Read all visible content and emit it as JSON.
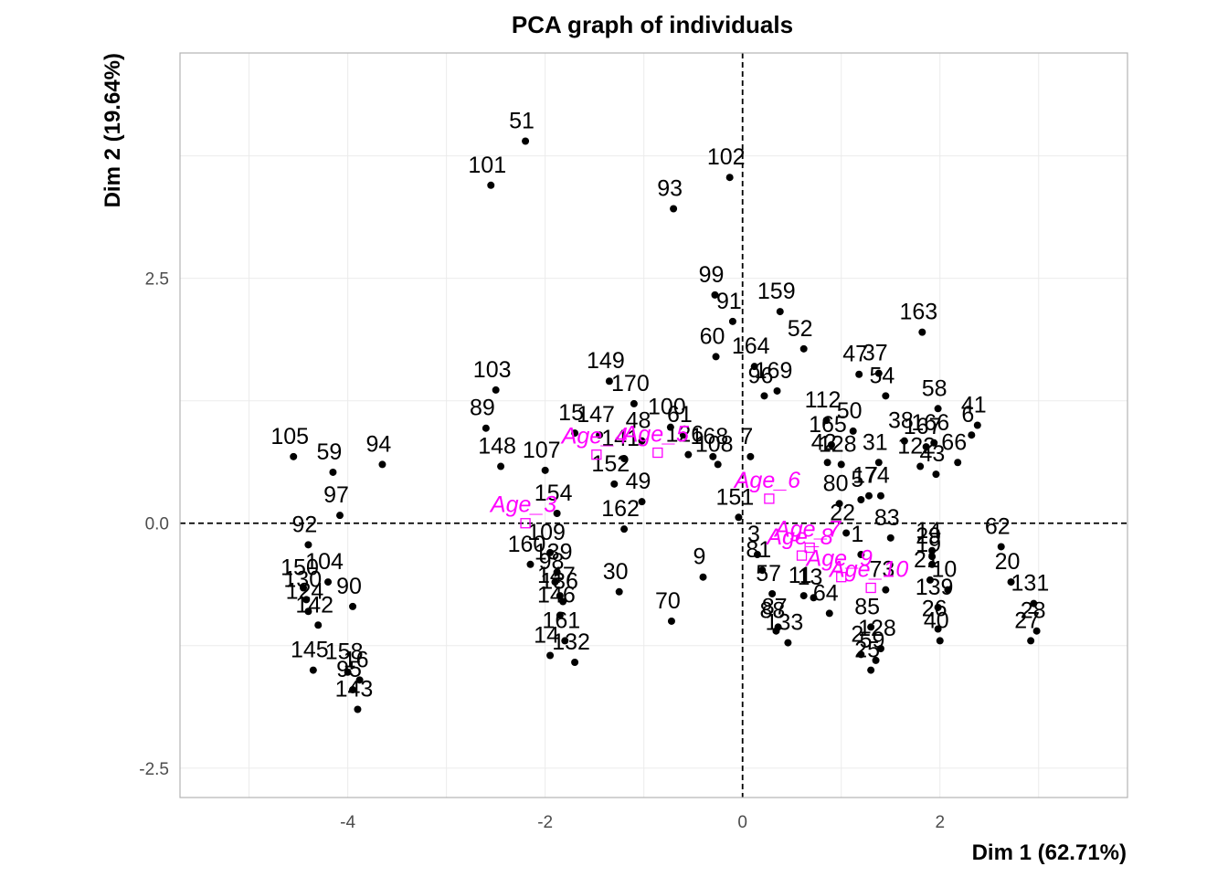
{
  "chart_data": {
    "type": "scatter",
    "title": "PCA graph of individuals",
    "xlabel": "Dim 1 (62.71%)",
    "ylabel": "Dim 2 (19.64%)",
    "xlim": [
      -5.7,
      3.9
    ],
    "ylim": [
      -2.8,
      4.8
    ],
    "x_ticks": [
      -4,
      -2,
      0,
      2
    ],
    "x_tick_labels": [
      "-4",
      "-2",
      "0",
      "2"
    ],
    "y_ticks": [
      -2.5,
      0,
      2.5
    ],
    "y_tick_labels": [
      "-2.5",
      "0.0",
      "2.5"
    ],
    "grid": true,
    "reference_lines": [
      0,
      0
    ],
    "point_color": "#000000",
    "supplementary_color": "#ff00ff",
    "individuals": [
      {
        "label": "51",
        "x": -2.2,
        "y": 3.9
      },
      {
        "label": "101",
        "x": -2.55,
        "y": 3.45
      },
      {
        "label": "102",
        "x": -0.13,
        "y": 3.53
      },
      {
        "label": "93",
        "x": -0.7,
        "y": 3.21
      },
      {
        "label": "99",
        "x": -0.28,
        "y": 2.33
      },
      {
        "label": "91",
        "x": -0.1,
        "y": 2.06
      },
      {
        "label": "60",
        "x": -0.27,
        "y": 1.7
      },
      {
        "label": "159",
        "x": 0.38,
        "y": 2.16
      },
      {
        "label": "52",
        "x": 0.62,
        "y": 1.78
      },
      {
        "label": "163",
        "x": 1.82,
        "y": 1.95
      },
      {
        "label": "164",
        "x": 0.12,
        "y": 1.6
      },
      {
        "label": "47",
        "x": 1.18,
        "y": 1.52
      },
      {
        "label": "37",
        "x": 1.38,
        "y": 1.53
      },
      {
        "label": "54",
        "x": 1.45,
        "y": 1.3
      },
      {
        "label": "169",
        "x": 0.35,
        "y": 1.35
      },
      {
        "label": "96",
        "x": 0.22,
        "y": 1.3
      },
      {
        "label": "58",
        "x": 1.98,
        "y": 1.17
      },
      {
        "label": "41",
        "x": 2.38,
        "y": 1.0
      },
      {
        "label": "6",
        "x": 2.32,
        "y": 0.9
      },
      {
        "label": "112",
        "x": 0.85,
        "y": 1.05
      },
      {
        "label": "50",
        "x": 1.12,
        "y": 0.94
      },
      {
        "label": "166",
        "x": 1.94,
        "y": 0.82
      },
      {
        "label": "38",
        "x": 1.64,
        "y": 0.84
      },
      {
        "label": "167",
        "x": 1.86,
        "y": 0.78
      },
      {
        "label": "66",
        "x": 2.18,
        "y": 0.62
      },
      {
        "label": "165",
        "x": 0.9,
        "y": 0.8
      },
      {
        "label": "31",
        "x": 1.38,
        "y": 0.62
      },
      {
        "label": "122",
        "x": 1.8,
        "y": 0.58
      },
      {
        "label": "43",
        "x": 1.96,
        "y": 0.5
      },
      {
        "label": "128",
        "x": 1.0,
        "y": 0.6
      },
      {
        "label": "42",
        "x": 0.86,
        "y": 0.62
      },
      {
        "label": "17",
        "x": 1.28,
        "y": 0.28
      },
      {
        "label": "74",
        "x": 1.4,
        "y": 0.28
      },
      {
        "label": "105",
        "x": -4.55,
        "y": 0.68
      },
      {
        "label": "59",
        "x": -4.15,
        "y": 0.52
      },
      {
        "label": "94",
        "x": -3.65,
        "y": 0.6
      },
      {
        "label": "97",
        "x": -4.08,
        "y": 0.08
      },
      {
        "label": "103",
        "x": -2.5,
        "y": 1.36
      },
      {
        "label": "89",
        "x": -2.6,
        "y": 0.97
      },
      {
        "label": "148",
        "x": -2.45,
        "y": 0.58
      },
      {
        "label": "107",
        "x": -2.0,
        "y": 0.54
      },
      {
        "label": "149",
        "x": -1.35,
        "y": 1.45
      },
      {
        "label": "170",
        "x": -1.1,
        "y": 1.22
      },
      {
        "label": "15",
        "x": -1.7,
        "y": 0.92
      },
      {
        "label": "147",
        "x": -1.45,
        "y": 0.9
      },
      {
        "label": "48",
        "x": -1.02,
        "y": 0.84
      },
      {
        "label": "100",
        "x": -0.73,
        "y": 0.98
      },
      {
        "label": "61",
        "x": -0.6,
        "y": 0.9
      },
      {
        "label": "168",
        "x": -0.3,
        "y": 0.68
      },
      {
        "label": "7",
        "x": 0.08,
        "y": 0.68
      },
      {
        "label": "126",
        "x": -0.55,
        "y": 0.7
      },
      {
        "label": "141",
        "x": -1.2,
        "y": 0.66
      },
      {
        "label": "108",
        "x": -0.25,
        "y": 0.6
      },
      {
        "label": "152",
        "x": -1.3,
        "y": 0.4
      },
      {
        "label": "49",
        "x": -1.02,
        "y": 0.22
      },
      {
        "label": "151",
        "x": -0.04,
        "y": 0.06
      },
      {
        "label": "154",
        "x": -1.88,
        "y": 0.1
      },
      {
        "label": "162",
        "x": -1.2,
        "y": -0.06
      },
      {
        "label": "109",
        "x": -1.95,
        "y": -0.3
      },
      {
        "label": "160",
        "x": -2.15,
        "y": -0.42
      },
      {
        "label": "139",
        "x": -1.88,
        "y": -0.5
      },
      {
        "label": "98",
        "x": -1.9,
        "y": -0.6
      },
      {
        "label": "147",
        "x": -1.85,
        "y": -0.74
      },
      {
        "label": "136",
        "x": -1.82,
        "y": -0.8
      },
      {
        "label": "146",
        "x": -1.85,
        "y": -0.94
      },
      {
        "label": "161",
        "x": -1.8,
        "y": -1.2
      },
      {
        "label": "14",
        "x": -1.95,
        "y": -1.35
      },
      {
        "label": "132",
        "x": -1.7,
        "y": -1.42
      },
      {
        "label": "30",
        "x": -1.25,
        "y": -0.7
      },
      {
        "label": "70",
        "x": -0.72,
        "y": -1.0
      },
      {
        "label": "9",
        "x": -0.4,
        "y": -0.55
      },
      {
        "label": "92",
        "x": -4.4,
        "y": -0.22
      },
      {
        "label": "104",
        "x": -4.2,
        "y": -0.6
      },
      {
        "label": "150",
        "x": -4.45,
        "y": -0.66
      },
      {
        "label": "130",
        "x": -4.42,
        "y": -0.78
      },
      {
        "label": "124",
        "x": -4.4,
        "y": -0.9
      },
      {
        "label": "90",
        "x": -3.95,
        "y": -0.85
      },
      {
        "label": "142",
        "x": -4.3,
        "y": -1.04
      },
      {
        "label": "145",
        "x": -4.35,
        "y": -1.5
      },
      {
        "label": "158",
        "x": -4.0,
        "y": -1.52
      },
      {
        "label": "16",
        "x": -3.88,
        "y": -1.6
      },
      {
        "label": "95",
        "x": -3.95,
        "y": -1.7
      },
      {
        "label": "143",
        "x": -3.9,
        "y": -1.9
      },
      {
        "label": "3",
        "x": 0.15,
        "y": -0.32
      },
      {
        "label": "81",
        "x": 0.2,
        "y": -0.48
      },
      {
        "label": "57",
        "x": 0.3,
        "y": -0.72
      },
      {
        "label": "11",
        "x": 0.62,
        "y": -0.74
      },
      {
        "label": "13",
        "x": 0.72,
        "y": -0.76
      },
      {
        "label": "64",
        "x": 0.88,
        "y": -0.92
      },
      {
        "label": "87",
        "x": 0.36,
        "y": -1.06
      },
      {
        "label": "88",
        "x": 0.34,
        "y": -1.1
      },
      {
        "label": "133",
        "x": 0.46,
        "y": -1.22
      },
      {
        "label": "22",
        "x": 1.05,
        "y": -0.1
      },
      {
        "label": "83",
        "x": 1.5,
        "y": -0.15
      },
      {
        "label": "80",
        "x": 0.98,
        "y": 0.2
      },
      {
        "label": "5",
        "x": 1.2,
        "y": 0.24
      },
      {
        "label": "1",
        "x": 1.2,
        "y": -0.32
      },
      {
        "label": "14",
        "x": 1.92,
        "y": -0.28
      },
      {
        "label": "29",
        "x": 1.92,
        "y": -0.34
      },
      {
        "label": "19",
        "x": 1.92,
        "y": -0.42
      },
      {
        "label": "21",
        "x": 1.9,
        "y": -0.58
      },
      {
        "label": "10",
        "x": 2.08,
        "y": -0.68
      },
      {
        "label": "73",
        "x": 1.45,
        "y": -0.68
      },
      {
        "label": "139",
        "x": 1.98,
        "y": -0.86
      },
      {
        "label": "62",
        "x": 2.62,
        "y": -0.24
      },
      {
        "label": "20",
        "x": 2.72,
        "y": -0.6
      },
      {
        "label": "131",
        "x": 2.95,
        "y": -0.82
      },
      {
        "label": "28",
        "x": 2.98,
        "y": -1.1
      },
      {
        "label": "27",
        "x": 2.92,
        "y": -1.2
      },
      {
        "label": "26",
        "x": 1.98,
        "y": -1.08
      },
      {
        "label": "40",
        "x": 2.0,
        "y": -1.2
      },
      {
        "label": "85",
        "x": 1.3,
        "y": -1.06
      },
      {
        "label": "128",
        "x": 1.4,
        "y": -1.28
      },
      {
        "label": "2",
        "x": 1.2,
        "y": -1.34
      },
      {
        "label": "59",
        "x": 1.35,
        "y": -1.4
      },
      {
        "label": "25",
        "x": 1.3,
        "y": -1.5
      }
    ],
    "supplementary": [
      {
        "label": "Age_3",
        "x": -2.2,
        "y": 0.0
      },
      {
        "label": "Age_4",
        "x": -1.48,
        "y": 0.7
      },
      {
        "label": "Age_5",
        "x": -0.86,
        "y": 0.72
      },
      {
        "label": "Age_6",
        "x": 0.27,
        "y": 0.25
      },
      {
        "label": "Age_7",
        "x": 0.68,
        "y": -0.25
      },
      {
        "label": "Age_8",
        "x": 0.6,
        "y": -0.33
      },
      {
        "label": "Age_9",
        "x": 1.0,
        "y": -0.55
      },
      {
        "label": "Age_10",
        "x": 1.3,
        "y": -0.66
      }
    ]
  }
}
